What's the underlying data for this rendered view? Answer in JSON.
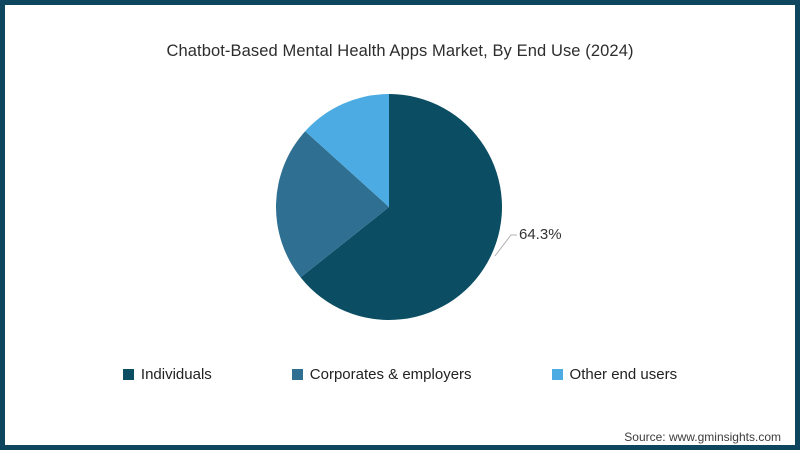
{
  "frame": {
    "border_color": "#0e4660",
    "background_color": "#ffffff"
  },
  "chart_data": {
    "type": "pie",
    "title": "Chatbot-Based Mental Health Apps Market, By End Use (2024)",
    "legend_position": "bottom",
    "start_angle_deg": 0,
    "direction": "clockwise",
    "slices": [
      {
        "label": "Individuals",
        "value": 64.3,
        "color": "#0b4e63",
        "data_label": "64.3%"
      },
      {
        "label": "Corporates & employers",
        "value": 22.4,
        "color": "#2f7092",
        "data_label": ""
      },
      {
        "label": "Other end users",
        "value": 13.3,
        "color": "#4babe2",
        "data_label": ""
      }
    ],
    "annotations": [
      "64.3%"
    ]
  },
  "source": "Source: www.gminsights.com"
}
